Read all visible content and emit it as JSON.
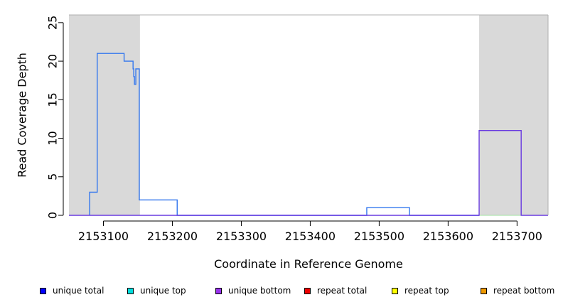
{
  "chart_data": {
    "type": "line",
    "title": "",
    "xlabel": "Coordinate in Reference Genome",
    "ylabel": "Read Coverage Depth",
    "xlim": [
      2153050,
      2153745
    ],
    "ylim": [
      0,
      26
    ],
    "xticks": [
      2153100,
      2153200,
      2153300,
      2153400,
      2153500,
      2153600,
      2153700
    ],
    "xtick_labels": [
      "2153100",
      "2153200",
      "2153300",
      "2153400",
      "2153500",
      "2153600",
      "2153700"
    ],
    "yticks": [
      0,
      5,
      10,
      15,
      20,
      25
    ],
    "ytick_labels": [
      "0",
      "5",
      "10",
      "15",
      "20",
      "25"
    ],
    "shaded_regions": [
      {
        "start": 2153050,
        "end": 2153153
      },
      {
        "start": 2153645,
        "end": 2153745
      }
    ],
    "series": [
      {
        "name": "unique total",
        "color": "#3377ee",
        "step": true,
        "x": [
          2153080,
          2153080,
          2153091,
          2153091,
          2153130,
          2153130,
          2153143,
          2153143,
          2153144,
          2153144,
          2153145,
          2153145,
          2153147,
          2153147,
          2153152,
          2153152,
          2153207,
          2153207,
          2153482,
          2153482,
          2153544,
          2153544,
          2153645
        ],
        "y": [
          0,
          3,
          3,
          21,
          21,
          20,
          20,
          19,
          19,
          18,
          18,
          17,
          17,
          19,
          19,
          2,
          2,
          0,
          0,
          1,
          1,
          0,
          0
        ]
      },
      {
        "name": "unique bottom",
        "color": "#6a3be0",
        "step": true,
        "x": [
          2153050,
          2153645,
          2153645,
          2153706,
          2153706,
          2153745
        ],
        "y": [
          0,
          0,
          11,
          11,
          0,
          0
        ]
      }
    ],
    "legend": [
      {
        "label": "unique total",
        "color": "#0000ff"
      },
      {
        "label": "unique top",
        "color": "#00dddd"
      },
      {
        "label": "unique bottom",
        "color": "#9933ee"
      },
      {
        "label": "repeat total",
        "color": "#ee0000"
      },
      {
        "label": "repeat top",
        "color": "#ffff00"
      },
      {
        "label": "repeat bottom",
        "color": "#ee9900"
      }
    ],
    "legend_position": "bottom",
    "grid": false
  }
}
